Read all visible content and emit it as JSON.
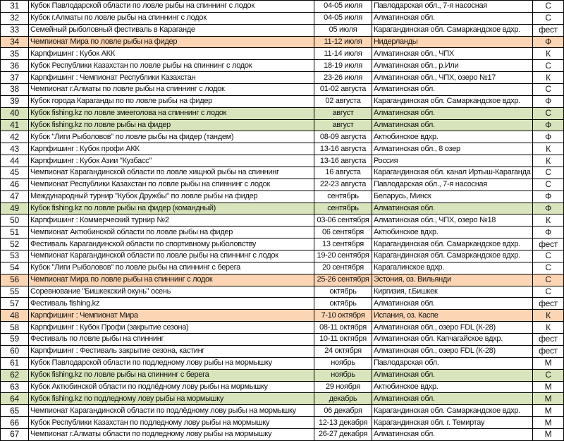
{
  "colors": {
    "orange": "#fcd5b4",
    "green": "#d8e4bc"
  },
  "rows": [
    {
      "n": "31",
      "name": "Кубок Павлодарской области по ловле рыбы на спиннинг с лодок",
      "date": "04-05 июля",
      "place": "Павлодарская обл., 7-я насосная",
      "type": "С",
      "hl": ""
    },
    {
      "n": "32",
      "name": "Кубок г.Алматы по ловле рыбы на спиннинг с лодок",
      "date": "04-05 июля",
      "place": "Алматинская обл.",
      "type": "С",
      "hl": ""
    },
    {
      "n": "33",
      "name": "Семейный  рыболовный фестиваль в Караганде",
      "date": "05 июля",
      "place": "Карагандинская обл. Самаркандское вдхр.",
      "type": "фест",
      "hl": ""
    },
    {
      "n": "34",
      "name": "Чемпионат Мира по ловле рыбы на фидер",
      "date": "11-12 июля",
      "place": "Нидерланды",
      "type": "Ф",
      "hl": "orange"
    },
    {
      "n": "35",
      "name": "Карпфишинг : Кубок АКК",
      "date": "11-14 июля",
      "place": "Алматинская обл., ЧПХ",
      "type": "К",
      "hl": ""
    },
    {
      "n": "36",
      "name": "Кубок Республики Казахстан по ловле рыбы на спиннинг с лодок",
      "date": "18-19 июля",
      "place": "Алматинская обл., р.Или",
      "type": "С",
      "hl": ""
    },
    {
      "n": "37",
      "name": "Карпфишинг : Чемпионат Республики Казахстан",
      "date": "23-26 июля",
      "place": "Алматинская обл., ЧПХ, озеро №17",
      "type": "К",
      "hl": ""
    },
    {
      "n": "38",
      "name": "Чемпионат г.Алматы по ловле рыбы на спиннинг с лодок",
      "date": "01-02 августа",
      "place": "Алматинская обл.",
      "type": "С",
      "hl": ""
    },
    {
      "n": "39",
      "name": "Кубок города Караганды по  по ловле рыбы на фидер",
      "date": "02 августа",
      "place": "Карагандинская обл. Самаркандское вдхр.",
      "type": "Ф",
      "hl": ""
    },
    {
      "n": "40",
      "name": "Кубок fishing.kz по ловле змееголова на спиннинг с лодок",
      "date": "август",
      "place": "Алматинская обл.",
      "type": "С",
      "hl": "green"
    },
    {
      "n": "41",
      "name": "Кубок fishing.kz по ловле рыбы на фидер",
      "date": "август",
      "place": "Алматинская обл.",
      "type": "Ф",
      "hl": "green"
    },
    {
      "n": "42",
      "name": "Кубок \"Лиги Рыболовов\" по ловле рыбы на фидер (тандем)",
      "date": "08-09 августа",
      "place": "Актюбинское вдхр.",
      "type": "Ф",
      "hl": ""
    },
    {
      "n": "43",
      "name": "Карпфишинг : Кубок профи АКК",
      "date": "13-16 августа",
      "place": "Алматинская обл., 8 озер",
      "type": "К",
      "hl": ""
    },
    {
      "n": "44",
      "name": "Карпфишинг : Кубок Азии \"Кузбасс\"",
      "date": "13-16 августа",
      "place": "Россия",
      "type": "К",
      "hl": ""
    },
    {
      "n": "45",
      "name": "Чемпионат Карагандинской области по ловле хищной рыбы на спиннинг",
      "date": "16 августа",
      "place": "Карагандинская обл. канал Иртыш-Караганда",
      "type": "С",
      "hl": ""
    },
    {
      "n": "46",
      "name": "Чемпионат Республики Казахстан по ловле рыбы на спиннинг с лодок",
      "date": "22-23 августа",
      "place": "Павлодарская обл., 7-я насосная",
      "type": "С",
      "hl": ""
    },
    {
      "n": "47",
      "name": "Международный турнир \"Кубок Дружбы\" по ловле рыбы на фидер",
      "date": "сентябрь",
      "place": "Беларусь, Минск",
      "type": "Ф",
      "hl": ""
    },
    {
      "n": "49",
      "name": "Кубок fishing.kz по ловле рыбы на фидер (командный)",
      "date": "сентябрь",
      "place": "Алматинская обл.",
      "type": "Ф",
      "hl": "green"
    },
    {
      "n": "50",
      "name": "Карпфишинг : Коммерческий турнир №2",
      "date": "03-06 сентября",
      "place": "Алматинская обл., ЧПХ, озеро №18",
      "type": "К",
      "hl": ""
    },
    {
      "n": "51",
      "name": "Чемпионат Актюбинской области по ловле рыбы на фидер",
      "date": "06 сентября",
      "place": "Актюбинское вдхр.",
      "type": "Ф",
      "hl": ""
    },
    {
      "n": "52",
      "name": "Фестиваль Карагандинской области по спортивному рыболовству",
      "date": "13 сентября",
      "place": "Карагандинская обл. Самаркандское вдхр.",
      "type": "фест",
      "hl": ""
    },
    {
      "n": "53",
      "name": "Чемпионат Карагандинской области по ловле рыбы на спиннинг с лодок",
      "date": "19-20 сентября",
      "place": "Карагандинская обл. Самаркандское вдхр.",
      "type": "С",
      "hl": ""
    },
    {
      "n": "54",
      "name": "Кубок \"Лиги Рыболовов\" по ловле рыбы на спиннинг с берега",
      "date": "20 сентября",
      "place": "Карагалинское вдхр.",
      "type": "С",
      "hl": ""
    },
    {
      "n": "56",
      "name": "Чемпионат Мира по ловле рыбы на спиннинг с лодок",
      "date": "25-26 сентября",
      "place": "Эстония, оз. Вильянди",
      "type": "С",
      "hl": "orange"
    },
    {
      "n": "55",
      "name": "Соревнование \"Бишкекский окунь\" осень",
      "date": "октябрь",
      "place": "Киргизия, г.Бишкек",
      "type": "С",
      "hl": ""
    },
    {
      "n": "57",
      "name": "Фестиваль fishing.kz",
      "date": "октябрь",
      "place": "Алматинская обл.",
      "type": "фест",
      "hl": ""
    },
    {
      "n": "48",
      "name": "Карпфишинг : Чемпионат Мира",
      "date": "7-10 октября",
      "place": "Испания, оз. Каспе",
      "type": "К",
      "hl": "orange"
    },
    {
      "n": "58",
      "name": "Карпфишинг : Кубок Профи (закрытие сезона)",
      "date": "08-11 октября",
      "place": "Алматинская обл., озеро FDL (К-28)",
      "type": "К",
      "hl": ""
    },
    {
      "n": "59",
      "name": "Фестиваль по ловле рыбы на спиннинг",
      "date": "10-11 октября",
      "place": "Алматинская обл. Капчагайское вдхр.",
      "type": "фест",
      "hl": ""
    },
    {
      "n": "60",
      "name": "Карпфишинг : Фестиваль закрытие сезона, кастинг",
      "date": "24 октября",
      "place": "Алматинская обл., озеро FDL (К-28)",
      "type": "фест",
      "hl": ""
    },
    {
      "n": "61",
      "name": "Кубок Павлодарской области по подледному лову рыбы на мормышку",
      "date": "ноябрь",
      "place": "Павлодарская обл.",
      "type": "М",
      "hl": ""
    },
    {
      "n": "62",
      "name": "Кубок fishing.kz по ловле рыбы на спиннинг с берега",
      "date": "ноябрь",
      "place": "Алматинская обл.",
      "type": "С",
      "hl": "green"
    },
    {
      "n": "63",
      "name": "Кубок Актюбинской области по подлёдному лову рыбы на мормышку",
      "date": "29 ноября",
      "place": "Актюбинское вдхр.",
      "type": "М",
      "hl": ""
    },
    {
      "n": "64",
      "name": "Кубок fishing.kz по подледному лову рыбы на мормышку",
      "date": "декабрь",
      "place": "Алматинская обл.",
      "type": "М",
      "hl": "green"
    },
    {
      "n": "65",
      "name": "Чемпионат Карагандинской области по подлёдному лову рыбы на мормышку",
      "date": "06 декабря",
      "place": "Карагандинская обл. Самаркандское вдхр.",
      "type": "М",
      "hl": ""
    },
    {
      "n": "66",
      "name": "Кубок Республики Казахстан по подледному лову рыбы на мормышку",
      "date": "12-13 декабря",
      "place": "Карагандинская обл. г. Темиртау",
      "type": "М",
      "hl": ""
    },
    {
      "n": "67",
      "name": "Чемпионат г.Алматы области по подледному  лову рыбы на мормышку",
      "date": "26-27 декабря",
      "place": "Алматинская обл.",
      "type": "М",
      "hl": ""
    }
  ]
}
